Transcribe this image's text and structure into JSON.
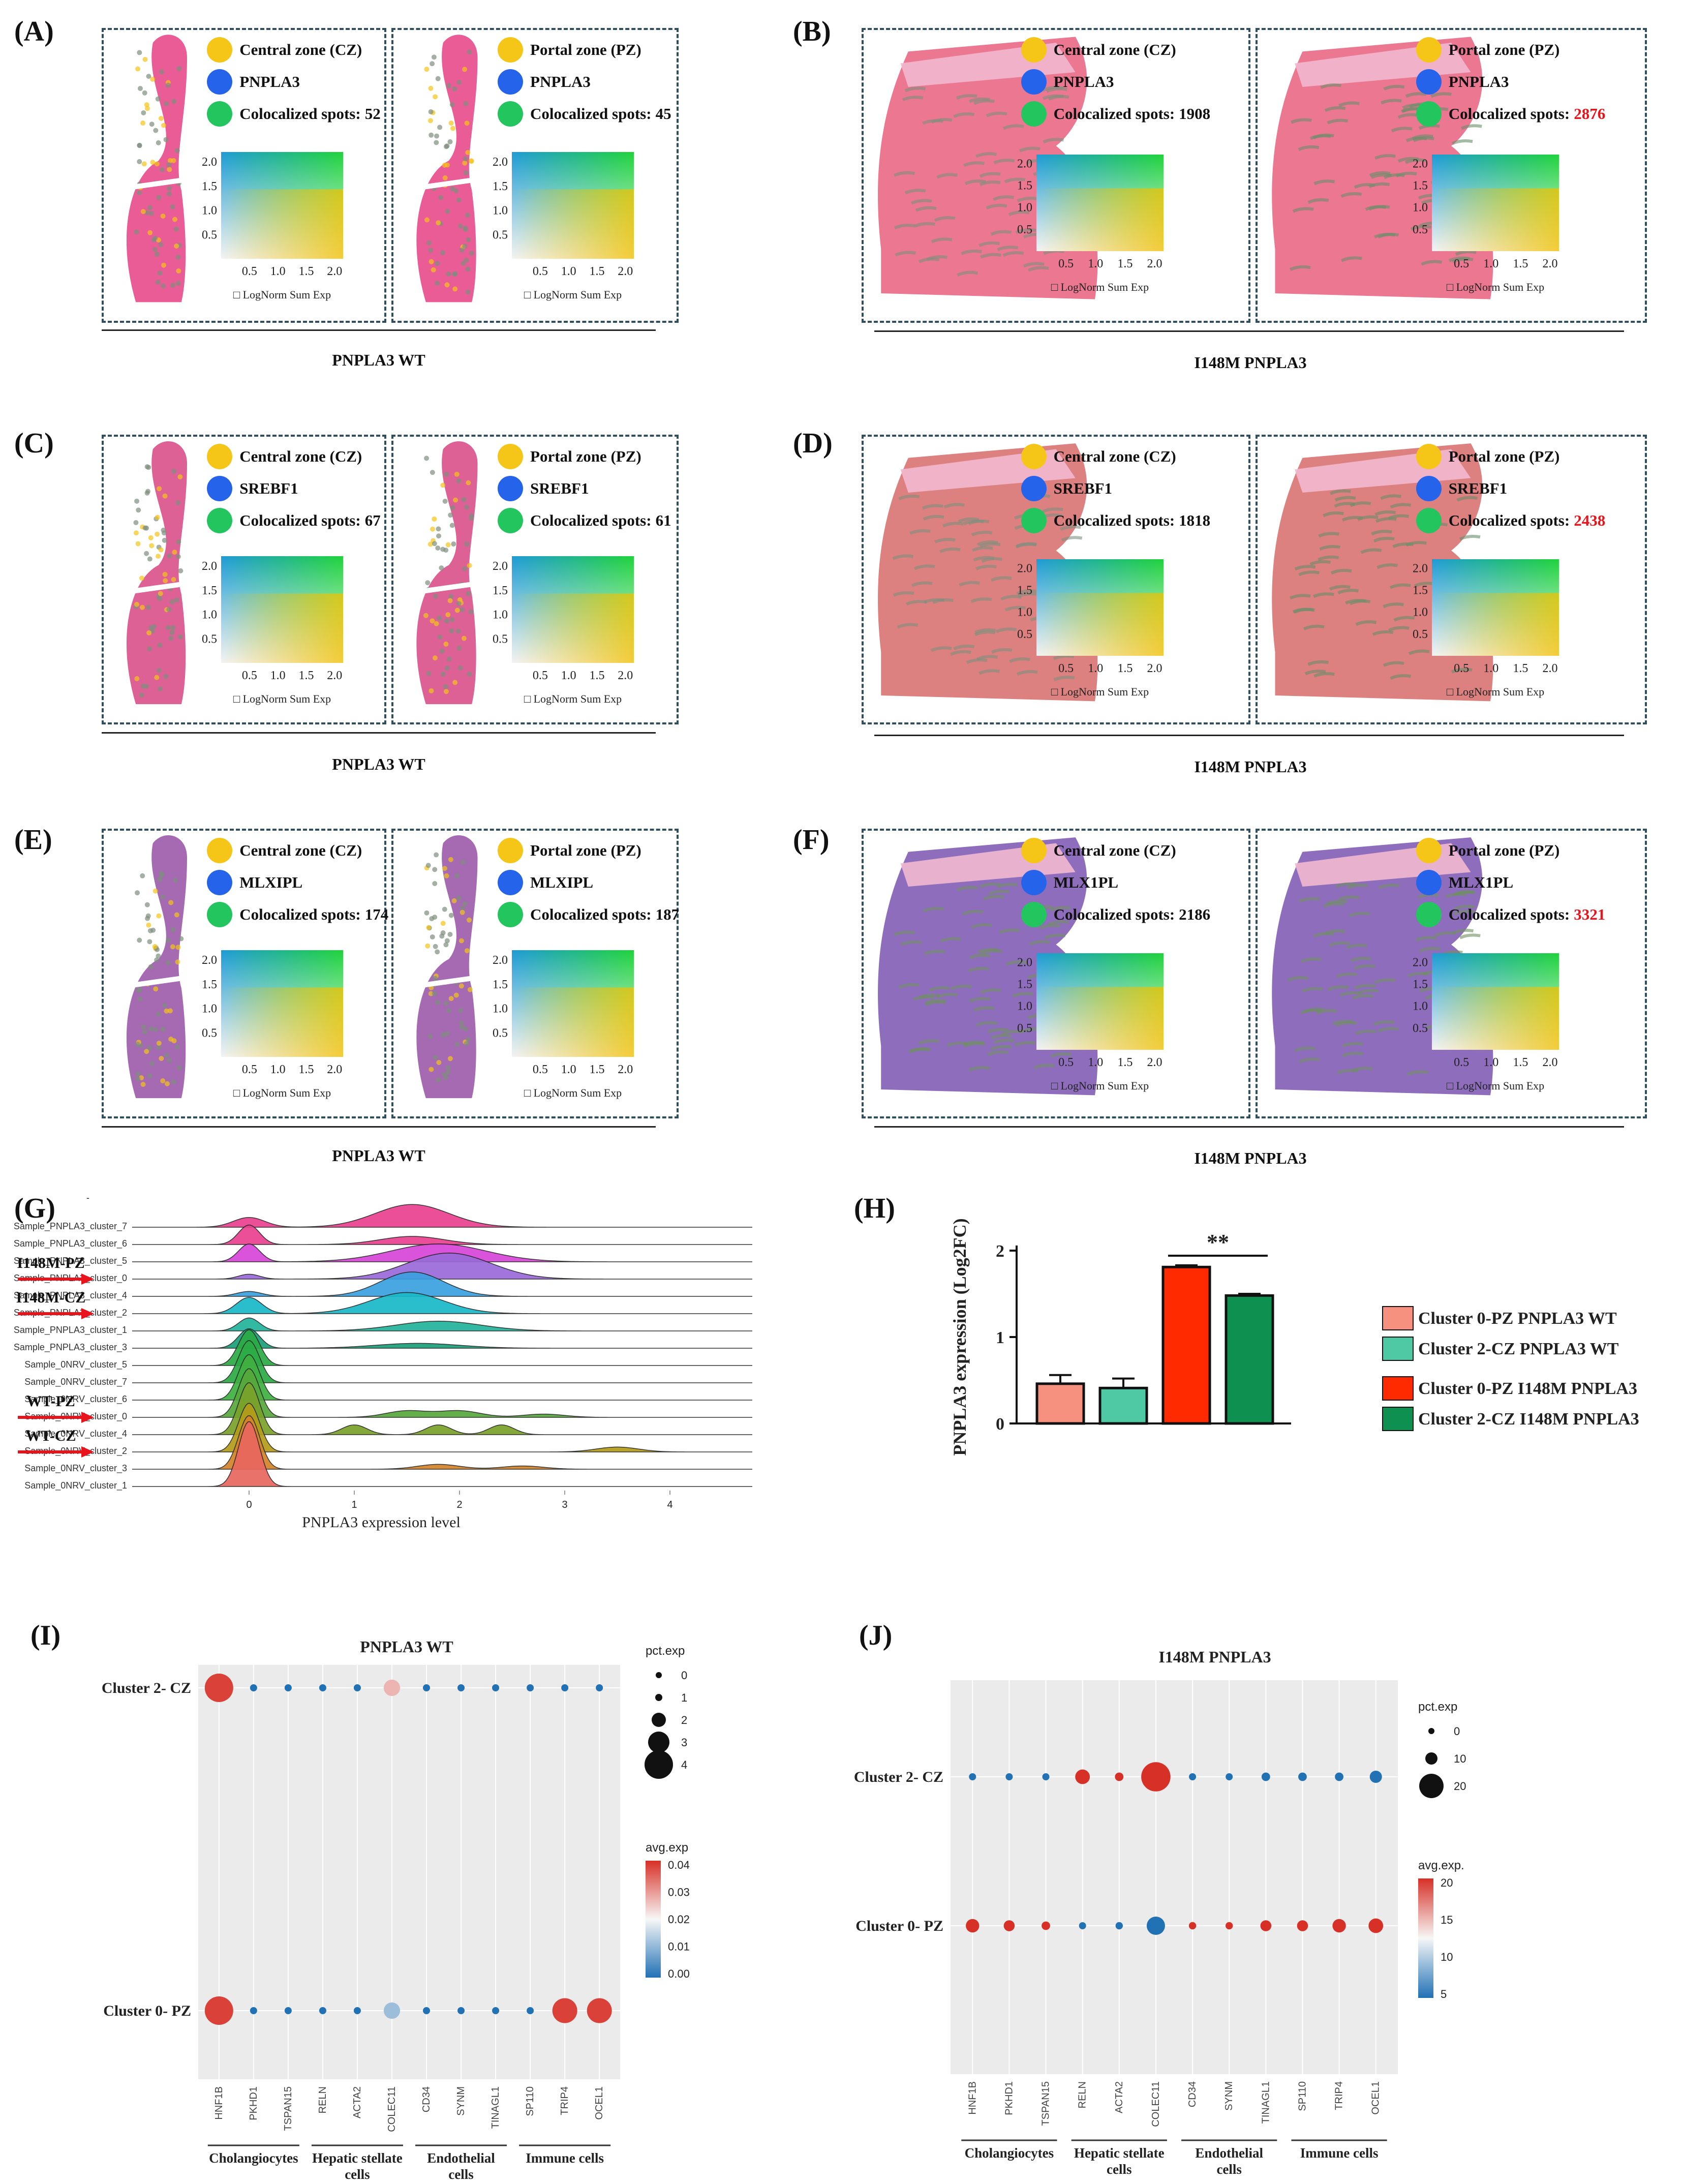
{
  "panels": {
    "A": {
      "label": "(A)",
      "caption": "PNPLA3 WT",
      "boxes": [
        {
          "zone": "Central zone (CZ)",
          "gene": "PNPLA3",
          "spots_label": "Colocalized spots:",
          "spots": "52"
        },
        {
          "zone": "Portal zone (PZ)",
          "gene": "PNPLA3",
          "spots_label": "Colocalized spots:",
          "spots": "45"
        }
      ]
    },
    "B": {
      "label": "(B)",
      "caption": "I148M PNPLA3",
      "boxes": [
        {
          "zone": "Central zone (CZ)",
          "gene": "PNPLA3",
          "spots_label": "Colocalized spots:",
          "spots": "1908"
        },
        {
          "zone": "Portal zone (PZ)",
          "gene": "PNPLA3",
          "spots_label": "Colocalized spots:",
          "spots": "2876"
        }
      ]
    },
    "C": {
      "label": "(C)",
      "caption": "PNPLA3 WT",
      "boxes": [
        {
          "zone": "Central zone (CZ)",
          "gene": "SREBF1",
          "spots_label": "Colocalized spots:",
          "spots": "67"
        },
        {
          "zone": "Portal zone (PZ)",
          "gene": "SREBF1",
          "spots_label": "Colocalized spots:",
          "spots": "61"
        }
      ]
    },
    "D": {
      "label": "(D)",
      "caption": "I148M PNPLA3",
      "boxes": [
        {
          "zone": "Central zone (CZ)",
          "gene": "SREBF1",
          "spots_label": "Colocalized spots:",
          "spots": "1818"
        },
        {
          "zone": "Portal zone (PZ)",
          "gene": "SREBF1",
          "spots_label": "Colocalized spots:",
          "spots": "2438"
        }
      ]
    },
    "E": {
      "label": "(E)",
      "caption": "PNPLA3 WT",
      "boxes": [
        {
          "zone": "Central zone (CZ)",
          "gene": "MLXIPL",
          "spots_label": "Colocalized spots:",
          "spots": "174"
        },
        {
          "zone": "Portal zone (PZ)",
          "gene": "MLXIPL",
          "spots_label": "Colocalized spots:",
          "spots": "187"
        }
      ]
    },
    "F": {
      "label": "(F)",
      "caption": "I148M PNPLA3",
      "boxes": [
        {
          "zone": "Central zone (CZ)",
          "gene": "MLX1PL",
          "spots_label": "Colocalized spots:",
          "spots": "2186"
        },
        {
          "zone": "Portal zone (PZ)",
          "gene": "MLX1PL",
          "spots_label": "Colocalized spots:",
          "spots": "3321"
        }
      ]
    }
  },
  "blend_legend": {
    "axis_ticks": [
      "0.5",
      "1.0",
      "1.5",
      "2.0"
    ],
    "xlabel": "LogNorm Sum Exp",
    "box_glyph": "□"
  },
  "colors": {
    "zone": "#f5c518",
    "gene": "#2563eb",
    "coloc": "#22c55e",
    "highlight": "#e8131b"
  },
  "panel_G": {
    "label": "(G)",
    "xlabel": "PNPLA3 expression level",
    "x_ticks": [
      "0",
      "1",
      "2",
      "3",
      "4"
    ],
    "ridges": [
      "Sample_PNPLA3_cluster_7",
      "Sample_PNPLA3_cluster_6",
      "Sample_PNPLA3_cluster_5",
      "Sample_PNPLA3_cluster_0",
      "Sample_PNPLA3_cluster_4",
      "Sample_PNPLA3_cluster_2",
      "Sample_PNPLA3_cluster_1",
      "Sample_PNPLA3_cluster_3",
      "Sample_0NRV_cluster_5",
      "Sample_0NRV_cluster_7",
      "Sample_0NRV_cluster_6",
      "Sample_0NRV_cluster_0",
      "Sample_0NRV_cluster_4",
      "Sample_0NRV_cluster_2",
      "Sample_0NRV_cluster_3",
      "Sample_0NRV_cluster_1"
    ],
    "arrows": [
      {
        "text": "I148M-PZ"
      },
      {
        "text": "I148M-CZ"
      },
      {
        "text": "WT-PZ"
      },
      {
        "text": "WT-CZ"
      }
    ],
    "tick_mark": "-"
  },
  "panel_H": {
    "label": "(H)",
    "ylabel": "PNPLA3 expression (Log2FC)",
    "y_ticks": [
      "0",
      "1",
      "2"
    ],
    "significance": "**"
  },
  "chart_data": {
    "type": "bar",
    "title": "",
    "xlabel": "",
    "ylabel": "PNPLA3 expression (Log2FC)",
    "ylim": [
      0,
      2
    ],
    "categories": [
      "Cluster 0-PZ PNPLA3 WT",
      "Cluster 2-CZ PNPLA3 WT",
      "Cluster 0-PZ I148M PNPLA3",
      "Cluster 2-CZ I148M PNPLA3"
    ],
    "values": [
      0.46,
      0.41,
      1.81,
      1.48
    ],
    "errors": [
      0.1,
      0.11,
      0.02,
      0.02
    ],
    "bar_colors": [
      "#f6917f",
      "#4fc9a4",
      "#ff2a00",
      "#0e9150"
    ]
  },
  "panel_I": {
    "label": "(I)",
    "title": "PNPLA3 WT",
    "rows": [
      "Cluster 2- CZ",
      "Cluster 0- PZ"
    ],
    "genes": [
      "HNF1B",
      "PKHD1",
      "TSPAN15",
      "RELN",
      "ACTA2",
      "COLEC11",
      "CD34",
      "SYNM",
      "TINAGL1",
      "SP110",
      "TRIP4",
      "OCEL1"
    ],
    "groups": [
      "Cholangiocytes",
      "Hepatic stellate cells",
      "Endothelial cells",
      "Immune cells"
    ],
    "pct_title": "pct.exp",
    "pct_ticks": [
      "0",
      "1",
      "2",
      "3",
      "4"
    ],
    "avg_title": "avg.exp",
    "avg_ticks": [
      "0.04",
      "0.03",
      "0.02",
      "0.01",
      "0.00"
    ],
    "pct": [
      [
        4,
        0.3,
        0.3,
        0.3,
        0.3,
        2.3,
        0.3,
        0.3,
        0.3,
        0.3,
        0.3,
        0.3
      ],
      [
        4,
        0.3,
        0.3,
        0.3,
        0.3,
        2.3,
        0.3,
        0.3,
        0.3,
        0.3,
        3.5,
        3.5
      ]
    ],
    "avg": [
      [
        0.043,
        0.0,
        0.0,
        0.0,
        0.0,
        0.03,
        0.0,
        0.0,
        0.0,
        0.0,
        0.0,
        0.0
      ],
      [
        0.043,
        0.0,
        0.0,
        0.0,
        0.0,
        0.013,
        0.0,
        0.0,
        0.0,
        0.0,
        0.043,
        0.043
      ]
    ]
  },
  "panel_J": {
    "label": "(J)",
    "title": "I148M PNPLA3",
    "rows": [
      "Cluster 2- CZ",
      "Cluster 0- PZ"
    ],
    "genes": [
      "HNF1B",
      "PKHD1",
      "TSPAN15",
      "RELN",
      "ACTA2",
      "COLEC11",
      "CD34",
      "SYNM",
      "TINAGL1",
      "SP110",
      "TRIP4",
      "OCEL1"
    ],
    "groups": [
      "Cholangiocytes",
      "Hepatic stellate cells",
      "Endothelial cells",
      "Immune cells"
    ],
    "pct_title": "pct.exp",
    "pct_ticks": [
      "0",
      "10",
      "20"
    ],
    "avg_title": "avg.exp.",
    "avg_ticks": [
      "20",
      "15",
      "10",
      "5"
    ],
    "pct": [
      [
        5,
        3,
        3,
        12,
        7,
        24,
        3,
        3,
        7,
        7,
        7,
        10
      ],
      [
        11,
        9,
        7,
        5,
        6,
        15,
        6,
        6,
        9,
        9,
        11,
        12
      ]
    ],
    "avg": [
      [
        2,
        2,
        2,
        20,
        20,
        20,
        2,
        2,
        2,
        2,
        2,
        2
      ],
      [
        20,
        20,
        20,
        2,
        2,
        2,
        20,
        20,
        20,
        20,
        20,
        20
      ]
    ]
  }
}
